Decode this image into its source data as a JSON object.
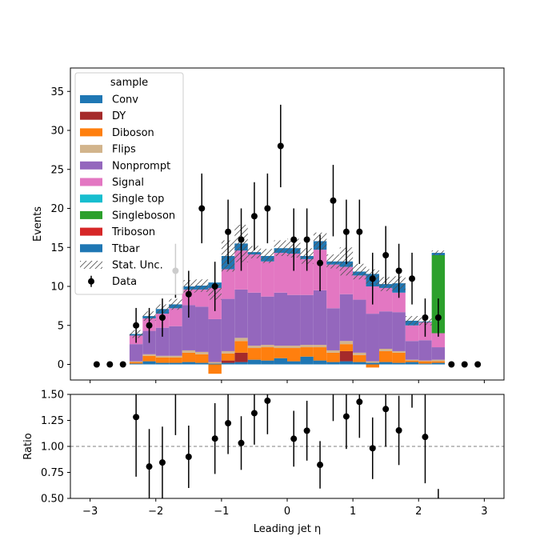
{
  "chart_data": [
    {
      "type": "bar",
      "subtype": "stacked-histogram-with-data-points",
      "panel": "main",
      "xlabel": "Leading jet  η",
      "ylabel": "Events",
      "xlim": [
        -3.3,
        3.3
      ],
      "ylim": [
        -2,
        38
      ],
      "xticks": [
        -3,
        -2,
        -1,
        0,
        1,
        2,
        3
      ],
      "yticks": [
        0,
        5,
        10,
        15,
        20,
        25,
        30,
        35
      ],
      "grid": false,
      "legend": {
        "title": "sample",
        "placement": "top-left",
        "entries": [
          "Conv",
          "DY",
          "Diboson",
          "Flips",
          "Nonprompt",
          "Signal",
          "Single top",
          "Singleboson",
          "Triboson",
          "Ttbar",
          "Stat. Unc.",
          "Data"
        ]
      },
      "bin_edges": [
        -3.0,
        -2.8,
        -2.6,
        -2.4,
        -2.2,
        -2.0,
        -1.8,
        -1.6,
        -1.4,
        -1.2,
        -1.0,
        -0.8,
        -0.6,
        -0.4,
        -0.2,
        0.0,
        0.2,
        0.4,
        0.6,
        0.8,
        1.0,
        1.2,
        1.4,
        1.6,
        1.8,
        2.0,
        2.2,
        2.4,
        2.6,
        2.8,
        3.0
      ],
      "series": [
        {
          "name": "Conv",
          "color": "#1f77b4",
          "values": [
            0,
            0,
            0,
            0.1,
            0.4,
            0.2,
            0.2,
            0.3,
            0.2,
            0.1,
            0.2,
            0.3,
            0.6,
            0.5,
            0.8,
            0.4,
            1.0,
            0.5,
            0.3,
            0.4,
            0.3,
            0.2,
            0.3,
            0.2,
            0.3,
            0.1,
            0.2,
            0,
            0,
            0
          ]
        },
        {
          "name": "DY",
          "color": "#a52a2a",
          "values": [
            0,
            0,
            0,
            0,
            0,
            0,
            0,
            0,
            0,
            0,
            0.3,
            1.2,
            0,
            0,
            0,
            0,
            0,
            0,
            0,
            1.3,
            0,
            0,
            0,
            0,
            0,
            0,
            0,
            0,
            0,
            0
          ]
        },
        {
          "name": "Diboson",
          "color": "#ff7f0e",
          "values": [
            0,
            0,
            0,
            0.2,
            0.7,
            0.7,
            0.7,
            1.2,
            1.1,
            -1.2,
            0.9,
            1.5,
            1.5,
            1.7,
            1.3,
            1.7,
            1.2,
            1.7,
            1.2,
            0.9,
            0.9,
            -0.4,
            1.4,
            1.3,
            0.2,
            0.3,
            0.2,
            0,
            0,
            0
          ]
        },
        {
          "name": "Flips",
          "color": "#d2b48c",
          "values": [
            0,
            0,
            0,
            0.1,
            0.2,
            0.2,
            0.2,
            0.3,
            0.3,
            0.2,
            0.3,
            0.4,
            0.3,
            0.3,
            0.3,
            0.3,
            0.3,
            0.3,
            0.3,
            0.4,
            0.3,
            0.2,
            0.3,
            0.2,
            0.1,
            0.1,
            0.2,
            0,
            0,
            0
          ]
        },
        {
          "name": "Nonprompt",
          "color": "#9467bd",
          "values": [
            0,
            0,
            0,
            2.2,
            3.0,
            3.6,
            3.8,
            5.8,
            5.8,
            5.5,
            6.7,
            6.2,
            6.8,
            6.2,
            6.8,
            6.5,
            6.4,
            7.0,
            5.4,
            6.0,
            6.8,
            6.1,
            4.8,
            5.0,
            2.4,
            2.6,
            1.6,
            0,
            0,
            0
          ]
        },
        {
          "name": "Signal",
          "color": "#e377c2",
          "values": [
            0,
            0,
            0,
            1.1,
            1.6,
            1.8,
            2.3,
            2.0,
            2.2,
            4.0,
            3.8,
            5.0,
            4.9,
            4.5,
            5.1,
            5.3,
            4.6,
            5.2,
            5.6,
            3.5,
            3.1,
            3.5,
            3.0,
            2.5,
            2.0,
            2.3,
            1.8,
            0,
            0,
            0
          ]
        },
        {
          "name": "Single top",
          "color": "#17becf",
          "values": [
            0,
            0,
            0,
            0,
            0,
            0,
            0,
            0,
            0,
            0,
            0,
            0,
            0,
            0,
            0,
            0,
            0,
            0,
            0,
            0,
            0,
            0,
            0,
            0,
            0,
            0,
            0,
            0,
            0,
            0
          ]
        },
        {
          "name": "Singleboson",
          "color": "#2ca02c",
          "values": [
            0,
            0,
            0,
            0,
            0,
            0,
            0,
            0,
            0,
            0,
            0,
            0,
            0,
            0,
            0,
            0,
            0,
            0,
            0,
            0,
            0,
            0,
            0,
            0,
            0,
            0,
            10.0,
            0,
            0,
            0
          ]
        },
        {
          "name": "Triboson",
          "color": "#d62728",
          "values": [
            0,
            0,
            0,
            0,
            0,
            0,
            0,
            0,
            0,
            0,
            0,
            0,
            0,
            0,
            0,
            0,
            0,
            0,
            0,
            0,
            0,
            0,
            0,
            0,
            0,
            0,
            0,
            0,
            0,
            0
          ]
        },
        {
          "name": "Ttbar",
          "color": "#1f77b4",
          "values": [
            0,
            0,
            0,
            0.2,
            0.3,
            0.6,
            0.5,
            0.4,
            0.5,
            0.7,
            1.7,
            0.9,
            0.3,
            0.7,
            0.6,
            0.7,
            0.4,
            1.1,
            0.4,
            0.7,
            0.5,
            1.6,
            0.5,
            1.2,
            0.6,
            0.1,
            0.3,
            0,
            0,
            0
          ]
        }
      ],
      "stat_unc": [
        0,
        0,
        0,
        0.5,
        0.6,
        0.6,
        0.7,
        0.8,
        0.8,
        1.0,
        2.0,
        2.4,
        0.8,
        0.9,
        1.0,
        1.2,
        1.0,
        1.1,
        0.9,
        1.8,
        1.0,
        1.0,
        0.9,
        0.9,
        0.6,
        0.5,
        0.3,
        0,
        0,
        0
      ],
      "data": {
        "name": "Data",
        "color": "#000000",
        "x": [
          -2.9,
          -2.7,
          -2.5,
          -2.3,
          -2.1,
          -1.9,
          -1.7,
          -1.5,
          -1.3,
          -1.1,
          -0.9,
          -0.7,
          -0.5,
          -0.3,
          -0.1,
          0.1,
          0.3,
          0.5,
          0.7,
          0.9,
          1.1,
          1.3,
          1.5,
          1.7,
          1.9,
          2.1,
          2.3,
          2.5,
          2.7,
          2.9
        ],
        "y": [
          0,
          0,
          0,
          5,
          5,
          6,
          12,
          9,
          20,
          10,
          17,
          16,
          19,
          20,
          28,
          16,
          16,
          13,
          21,
          17,
          17,
          11,
          14,
          12,
          11,
          6,
          6,
          0,
          0,
          0
        ]
      }
    },
    {
      "type": "scatter",
      "panel": "ratio",
      "xlabel": "Leading jet  η",
      "ylabel": "Ratio",
      "xlim": [
        -3.3,
        3.3
      ],
      "ylim": [
        0.5,
        1.5
      ],
      "xticks": [
        -3,
        -2,
        -1,
        0,
        1,
        2,
        3
      ],
      "yticks": [
        0.5,
        0.75,
        1.0,
        1.25,
        1.5
      ],
      "ytick_labels": [
        "0.50",
        "0.75",
        "1.00",
        "1.25",
        "1.50"
      ],
      "reference_line": 1.0,
      "grid": false
    }
  ]
}
